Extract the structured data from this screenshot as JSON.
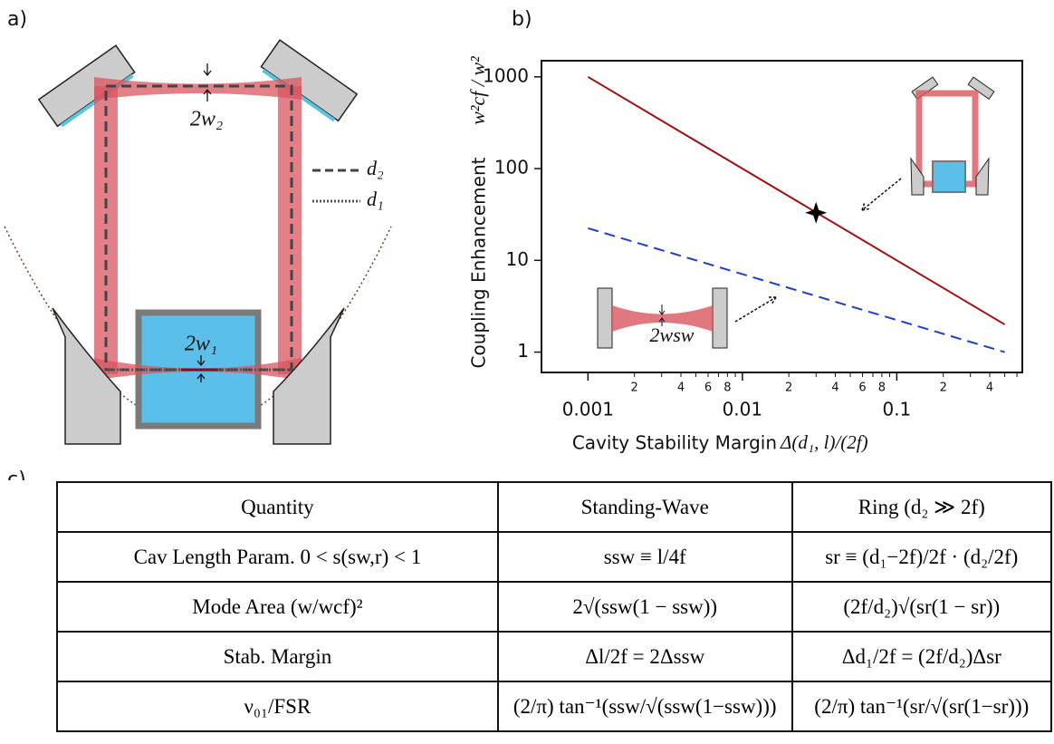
{
  "panel_labels": [
    "a)",
    "b)",
    "c)"
  ],
  "diagram": {
    "waist_top": "2w₂",
    "waist_bottom": "2w₁",
    "legend": [
      "d₂",
      "d₁"
    ]
  },
  "chart_data": {
    "type": "line",
    "ylabel": "Coupling Enhancement",
    "ylabel_math": "w²cf / w²",
    "xlabel": "Cavity Stability Margin",
    "xlabel_math": "Δ(d₁, l)/(2f)",
    "x": [
      0.001,
      0.5
    ],
    "series": [
      {
        "color": "#a01010",
        "dash": false,
        "values": [
          1000,
          2
        ]
      },
      {
        "color": "#1f3fc8",
        "dash": true,
        "values": [
          22.4,
          1
        ]
      }
    ],
    "points": [
      {
        "x": 0.03,
        "y": 33,
        "color": "#000000"
      }
    ],
    "inset_label": "2wsw",
    "xscale": "log",
    "yscale": "log",
    "xlim": [
      0.0005,
      0.65
    ],
    "ylim": [
      0.6,
      1500
    ],
    "xticks": [
      0.001,
      0.01,
      0.1
    ],
    "xtick_labels": [
      "0.001",
      "0.01",
      "0.1"
    ],
    "xminorticks_labeled": [
      {
        "value": 0.002,
        "label": "2"
      },
      {
        "value": 0.004,
        "label": "4"
      },
      {
        "value": 0.006,
        "label": "6"
      },
      {
        "value": 0.008,
        "label": "8"
      },
      {
        "value": 0.02,
        "label": "2"
      },
      {
        "value": 0.04,
        "label": "4"
      },
      {
        "value": 0.06,
        "label": "6"
      },
      {
        "value": 0.08,
        "label": "8"
      },
      {
        "value": 0.2,
        "label": "2"
      },
      {
        "value": 0.4,
        "label": "4"
      }
    ],
    "xminorticks": [
      0.003,
      0.005,
      0.007,
      0.009,
      0.03,
      0.05,
      0.07,
      0.09,
      0.3,
      0.5,
      0.6
    ],
    "yticks": [
      1,
      10,
      100,
      1000
    ]
  },
  "table": {
    "header": [
      "Quantity",
      "Standing-Wave",
      "Ring (d₂ ≫ 2f)"
    ],
    "rows": [
      [
        "Cav Length Param. 0 < s(sw,r) < 1",
        "ssw ≡ l/4f",
        "sr ≡ (d₁−2f)/2f · (d₂/2f)"
      ],
      [
        "Mode Area (w/wcf)²",
        "2√(ssw(1 − ssw))",
        "(2f/d₂)√(sr(1 − sr))"
      ],
      [
        "Stab. Margin",
        "Δl/2f = 2Δssw",
        "Δd₁/2f = (2f/d₂)Δsr"
      ],
      [
        "ν₀₁/FSR",
        "(2/π) tan⁻¹(ssw/√(ssw(1−ssw)))",
        "(2/π) tan⁻¹(sr/√(sr(1−sr)))"
      ]
    ]
  }
}
